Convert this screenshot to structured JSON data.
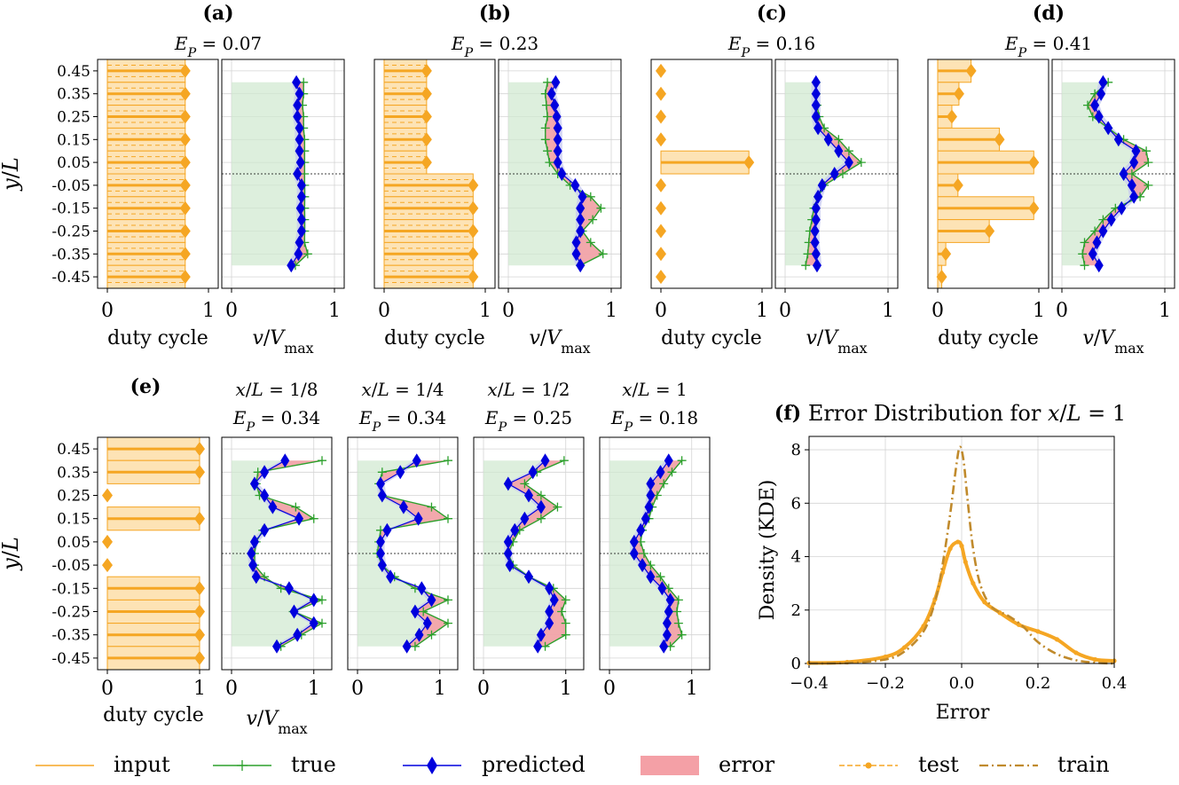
{
  "colors": {
    "input": "#f5a623",
    "input_fill": "#fde3b5",
    "true": "#2ca02c",
    "true_band": "#cfe8cf",
    "predicted": "#0000dd",
    "pred_band": "#c7c9f0",
    "error": "#f4a0a6",
    "test": "#f5a623",
    "train": "#c08a2c",
    "grid": "#d4d4d4"
  },
  "legend": {
    "input": "input",
    "true": "true",
    "predicted": "predicted",
    "error": "error",
    "test": "test",
    "train": "train"
  },
  "chart_data": {
    "type": "composite",
    "y_ticks": [
      0.45,
      0.35,
      0.25,
      0.15,
      0.05,
      -0.05,
      -0.15,
      -0.25,
      -0.35,
      -0.45
    ],
    "y_tick_labels": [
      "0.45",
      "0.35",
      "0.25",
      "0.15",
      "0.05",
      "-0.05",
      "-0.15",
      "-0.25",
      "-0.35",
      "-0.45"
    ],
    "y_label": "y/L",
    "x_label_duty": "duty cycle",
    "x_label_vel": "v/V_max",
    "x_ticks": [
      "0",
      "1"
    ],
    "vel_y": [
      0.4,
      0.35,
      0.3,
      0.25,
      0.2,
      0.15,
      0.1,
      0.05,
      0.0,
      -0.05,
      -0.1,
      -0.15,
      -0.2,
      -0.25,
      -0.3,
      -0.35,
      -0.4
    ],
    "duty_y": [
      0.45,
      0.35,
      0.25,
      0.15,
      0.05,
      -0.05,
      -0.15,
      -0.25,
      -0.35,
      -0.45
    ],
    "top_row": [
      {
        "panel_label": "(a)",
        "ep_value": "0.07",
        "duty": [
          0.77,
          0.77,
          0.77,
          0.77,
          0.77,
          0.77,
          0.77,
          0.77,
          0.77,
          0.77
        ],
        "v_true": [
          0.7,
          0.7,
          0.69,
          0.7,
          0.7,
          0.71,
          0.71,
          0.71,
          0.71,
          0.71,
          0.71,
          0.71,
          0.71,
          0.71,
          0.71,
          0.74,
          0.62
        ],
        "v_pred": [
          0.63,
          0.66,
          0.64,
          0.64,
          0.66,
          0.66,
          0.66,
          0.67,
          0.64,
          0.68,
          0.68,
          0.67,
          0.68,
          0.68,
          0.66,
          0.65,
          0.58
        ]
      },
      {
        "panel_label": "(b)",
        "ep_value": "0.23",
        "duty": [
          0.42,
          0.42,
          0.42,
          0.42,
          0.42,
          0.88,
          0.88,
          0.88,
          0.88,
          0.88
        ],
        "v_true": [
          0.38,
          0.36,
          0.37,
          0.38,
          0.36,
          0.36,
          0.38,
          0.4,
          0.48,
          0.6,
          0.8,
          0.9,
          0.82,
          0.72,
          0.8,
          0.92,
          0.7
        ],
        "v_pred": [
          0.46,
          0.42,
          0.45,
          0.47,
          0.48,
          0.48,
          0.48,
          0.48,
          0.52,
          0.65,
          0.72,
          0.7,
          0.7,
          0.7,
          0.66,
          0.66,
          0.7
        ]
      },
      {
        "panel_label": "(c)",
        "ep_value": "0.16",
        "duty": [
          0.0,
          0.0,
          0.0,
          0.0,
          0.87,
          0.0,
          0.0,
          0.0,
          0.0,
          0.0
        ],
        "v_true": [
          0.3,
          0.3,
          0.31,
          0.33,
          0.38,
          0.52,
          0.62,
          0.74,
          0.56,
          0.38,
          0.32,
          0.28,
          0.26,
          0.24,
          0.23,
          0.22,
          0.2
        ],
        "v_pred": [
          0.3,
          0.3,
          0.3,
          0.3,
          0.32,
          0.42,
          0.52,
          0.62,
          0.48,
          0.36,
          0.32,
          0.3,
          0.3,
          0.29,
          0.29,
          0.3,
          0.31
        ]
      },
      {
        "panel_label": "(d)",
        "ep_value": "0.41",
        "duty": [
          0.33,
          0.21,
          0.14,
          0.61,
          0.95,
          0.2,
          0.95,
          0.51,
          0.08,
          0.04
        ],
        "v_true": [
          0.45,
          0.32,
          0.25,
          0.3,
          0.45,
          0.6,
          0.82,
          0.84,
          0.68,
          0.84,
          0.76,
          0.52,
          0.4,
          0.32,
          0.22,
          0.2,
          0.22
        ],
        "v_pred": [
          0.4,
          0.38,
          0.32,
          0.36,
          0.45,
          0.55,
          0.72,
          0.7,
          0.6,
          0.68,
          0.7,
          0.58,
          0.48,
          0.4,
          0.34,
          0.3,
          0.36
        ]
      }
    ],
    "bottom_row": {
      "panel_label": "(e)",
      "duty": [
        1.0,
        1.0,
        0.0,
        1.0,
        0.0,
        0.0,
        1.0,
        1.0,
        1.0,
        1.0
      ],
      "panels": [
        {
          "title": "x/L = 1/8",
          "ep_value": "0.34",
          "v_true": [
            1.1,
            0.32,
            0.3,
            0.34,
            0.78,
            1.0,
            0.38,
            0.3,
            0.28,
            0.28,
            0.4,
            0.6,
            1.1,
            0.75,
            1.1,
            0.85,
            0.6
          ],
          "v_pred": [
            0.65,
            0.4,
            0.28,
            0.4,
            0.5,
            0.82,
            0.4,
            0.28,
            0.24,
            0.26,
            0.3,
            0.7,
            1.0,
            0.76,
            1.0,
            0.8,
            0.55
          ]
        },
        {
          "title": "x/L = 1/4",
          "ep_value": "0.34",
          "v_true": [
            1.1,
            0.3,
            0.26,
            0.3,
            0.9,
            1.1,
            0.28,
            0.26,
            0.24,
            0.3,
            0.45,
            0.7,
            1.1,
            0.8,
            1.1,
            0.9,
            0.7
          ],
          "v_pred": [
            0.72,
            0.52,
            0.28,
            0.3,
            0.56,
            0.74,
            0.36,
            0.28,
            0.28,
            0.3,
            0.4,
            0.78,
            0.9,
            0.7,
            0.85,
            0.75,
            0.6
          ]
        },
        {
          "title": "x/L = 1/2",
          "ep_value": "0.25",
          "v_true": [
            0.98,
            0.65,
            0.5,
            0.7,
            0.9,
            0.7,
            0.44,
            0.36,
            0.3,
            0.36,
            0.55,
            0.85,
            1.0,
            0.95,
            1.0,
            1.0,
            0.75
          ],
          "v_pred": [
            0.75,
            0.6,
            0.3,
            0.55,
            0.7,
            0.5,
            0.38,
            0.3,
            0.3,
            0.32,
            0.55,
            0.8,
            0.86,
            0.8,
            0.8,
            0.7,
            0.66
          ]
        },
        {
          "title": "x/L = 1",
          "ep_value": "0.18",
          "v_true": [
            0.88,
            0.76,
            0.66,
            0.58,
            0.52,
            0.48,
            0.4,
            0.38,
            0.42,
            0.5,
            0.62,
            0.72,
            0.84,
            0.82,
            0.84,
            0.88,
            0.74
          ],
          "v_pred": [
            0.72,
            0.62,
            0.5,
            0.5,
            0.48,
            0.44,
            0.38,
            0.3,
            0.3,
            0.4,
            0.5,
            0.64,
            0.74,
            0.72,
            0.7,
            0.7,
            0.66
          ]
        }
      ]
    },
    "kde": {
      "panel_label": "(f)",
      "title": "Error Distribution for x/L = 1",
      "xlabel": "Error",
      "ylabel": "Density (KDE)",
      "xlim": [
        -0.4,
        0.4
      ],
      "ylim": [
        0,
        8.5
      ],
      "x_ticks": [
        -0.4,
        -0.2,
        0.0,
        0.2,
        0.4
      ],
      "x_tick_labels": [
        "−0.4",
        "−0.2",
        "0.0",
        "0.2",
        "0.4"
      ],
      "y_ticks": [
        0,
        2,
        4,
        6,
        8
      ],
      "y_tick_labels": [
        "0",
        "2",
        "4",
        "6",
        "8"
      ],
      "series": [
        {
          "name": "test",
          "x": [
            -0.4,
            -0.3,
            -0.2,
            -0.15,
            -0.1,
            -0.07,
            -0.05,
            -0.03,
            -0.01,
            0.0,
            0.01,
            0.03,
            0.06,
            0.1,
            0.15,
            0.2,
            0.25,
            0.3,
            0.35,
            0.4
          ],
          "y": [
            0.02,
            0.05,
            0.25,
            0.6,
            1.4,
            2.4,
            3.4,
            4.3,
            4.55,
            4.4,
            3.8,
            3.0,
            2.3,
            1.9,
            1.45,
            1.2,
            0.9,
            0.4,
            0.15,
            0.1
          ]
        },
        {
          "name": "train",
          "x": [
            -0.4,
            -0.3,
            -0.2,
            -0.15,
            -0.1,
            -0.07,
            -0.05,
            -0.03,
            -0.015,
            -0.005,
            0.005,
            0.015,
            0.03,
            0.05,
            0.08,
            0.12,
            0.16,
            0.2,
            0.25,
            0.3,
            0.35,
            0.4
          ],
          "y": [
            0.0,
            0.02,
            0.15,
            0.45,
            1.2,
            2.3,
            3.7,
            5.6,
            7.3,
            8.1,
            7.6,
            6.2,
            4.3,
            2.9,
            2.1,
            1.8,
            1.4,
            0.8,
            0.35,
            0.12,
            0.03,
            0.0
          ]
        }
      ]
    }
  }
}
